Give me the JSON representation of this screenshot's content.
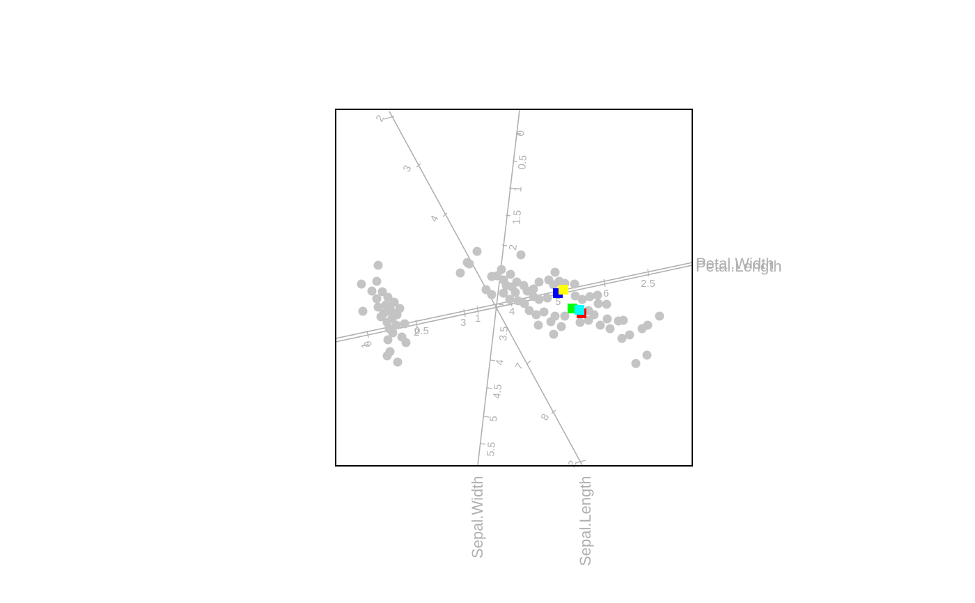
{
  "chart_data": {
    "type": "scatter",
    "title": "",
    "grid": false,
    "axes": [
      {
        "name": "Sepal.Length",
        "ticks": [
          5,
          6,
          7,
          8
        ],
        "tick_labels": [
          "5",
          "6",
          "7",
          "8"
        ]
      },
      {
        "name": "Sepal.Width",
        "ticks": [
          2,
          2.5,
          3,
          3.5,
          4,
          4.5,
          5,
          5.5
        ],
        "tick_labels": [
          "2",
          "2.5",
          "3",
          "3.5",
          "4",
          "4.5",
          "5",
          "5.5"
        ]
      },
      {
        "name": "Petal.Length",
        "ticks": [
          1,
          2,
          3,
          4,
          5,
          6
        ],
        "tick_labels": [
          "1",
          "2",
          "3",
          "4",
          "5",
          "6"
        ]
      },
      {
        "name": "Petal.Width",
        "ticks": [
          0,
          0.5,
          1,
          1.5,
          2,
          2.5
        ],
        "tick_labels": [
          "0",
          "0.5",
          "1",
          "1.5",
          "2",
          "2.5"
        ]
      }
    ],
    "points": [
      {
        "x": 519,
        "y": 408
      },
      {
        "x": 534,
        "y": 418
      },
      {
        "x": 541,
        "y": 404
      },
      {
        "x": 543,
        "y": 381
      },
      {
        "x": 549,
        "y": 419
      },
      {
        "x": 541,
        "y": 429
      },
      {
        "x": 557,
        "y": 427
      },
      {
        "x": 543,
        "y": 441
      },
      {
        "x": 566,
        "y": 434
      },
      {
        "x": 521,
        "y": 447
      },
      {
        "x": 560,
        "y": 443
      },
      {
        "x": 574,
        "y": 443
      },
      {
        "x": 547,
        "y": 455
      },
      {
        "x": 563,
        "y": 457
      },
      {
        "x": 556,
        "y": 463
      },
      {
        "x": 569,
        "y": 467
      },
      {
        "x": 581,
        "y": 465
      },
      {
        "x": 559,
        "y": 472
      },
      {
        "x": 564,
        "y": 478
      },
      {
        "x": 577,
        "y": 484
      },
      {
        "x": 557,
        "y": 488
      },
      {
        "x": 583,
        "y": 492
      },
      {
        "x": 560,
        "y": 505
      },
      {
        "x": 556,
        "y": 511
      },
      {
        "x": 571,
        "y": 520
      },
      {
        "x": 554,
        "y": 438
      },
      {
        "x": 551,
        "y": 450
      },
      {
        "x": 570,
        "y": 452
      },
      {
        "x": 562,
        "y": 448
      },
      {
        "x": 685,
        "y": 361
      },
      {
        "x": 671,
        "y": 377
      },
      {
        "x": 674,
        "y": 379
      },
      {
        "x": 661,
        "y": 392
      },
      {
        "x": 748,
        "y": 366
      },
      {
        "x": 706,
        "y": 397
      },
      {
        "x": 714,
        "y": 396
      },
      {
        "x": 723,
        "y": 402
      },
      {
        "x": 733,
        "y": 394
      },
      {
        "x": 698,
        "y": 416
      },
      {
        "x": 706,
        "y": 423
      },
      {
        "x": 723,
        "y": 421
      },
      {
        "x": 735,
        "y": 412
      },
      {
        "x": 742,
        "y": 405
      },
      {
        "x": 752,
        "y": 410
      },
      {
        "x": 757,
        "y": 418
      },
      {
        "x": 766,
        "y": 415
      },
      {
        "x": 774,
        "y": 405
      },
      {
        "x": 788,
        "y": 402
      },
      {
        "x": 797,
        "y": 391
      },
      {
        "x": 795,
        "y": 409
      },
      {
        "x": 803,
        "y": 404
      },
      {
        "x": 811,
        "y": 407
      },
      {
        "x": 825,
        "y": 408
      },
      {
        "x": 732,
        "y": 430
      },
      {
        "x": 744,
        "y": 432
      },
      {
        "x": 753,
        "y": 436
      },
      {
        "x": 766,
        "y": 426
      },
      {
        "x": 774,
        "y": 430
      },
      {
        "x": 786,
        "y": 428
      },
      {
        "x": 760,
        "y": 446
      },
      {
        "x": 770,
        "y": 452
      },
      {
        "x": 781,
        "y": 448
      },
      {
        "x": 791,
        "y": 462
      },
      {
        "x": 773,
        "y": 467
      },
      {
        "x": 806,
        "y": 469
      },
      {
        "x": 797,
        "y": 454
      },
      {
        "x": 811,
        "y": 454
      },
      {
        "x": 795,
        "y": 480
      },
      {
        "x": 826,
        "y": 425
      },
      {
        "x": 836,
        "y": 430
      },
      {
        "x": 847,
        "y": 426
      },
      {
        "x": 858,
        "y": 424
      },
      {
        "x": 859,
        "y": 436
      },
      {
        "x": 871,
        "y": 437
      },
      {
        "x": 845,
        "y": 446
      },
      {
        "x": 853,
        "y": 452
      },
      {
        "x": 845,
        "y": 460
      },
      {
        "x": 833,
        "y": 463
      },
      {
        "x": 862,
        "y": 467
      },
      {
        "x": 872,
        "y": 458
      },
      {
        "x": 876,
        "y": 472
      },
      {
        "x": 888,
        "y": 461
      },
      {
        "x": 895,
        "y": 460
      },
      {
        "x": 893,
        "y": 486
      },
      {
        "x": 904,
        "y": 481
      },
      {
        "x": 922,
        "y": 472
      },
      {
        "x": 930,
        "y": 467
      },
      {
        "x": 947,
        "y": 454
      },
      {
        "x": 929,
        "y": 510
      },
      {
        "x": 913,
        "y": 522
      },
      {
        "x": 720,
        "y": 387
      },
      {
        "x": 727,
        "y": 410
      },
      {
        "x": 740,
        "y": 420
      }
    ],
    "centroids": [
      {
        "color": "#ff0000",
        "x": 835,
        "y": 450
      },
      {
        "color": "#00ff00",
        "x": 822,
        "y": 443
      },
      {
        "color": "#0000ff",
        "x": 801,
        "y": 421
      },
      {
        "color": "#00ffff",
        "x": 832,
        "y": 445
      },
      {
        "color": "#ffff00",
        "x": 809,
        "y": 416
      }
    ]
  }
}
